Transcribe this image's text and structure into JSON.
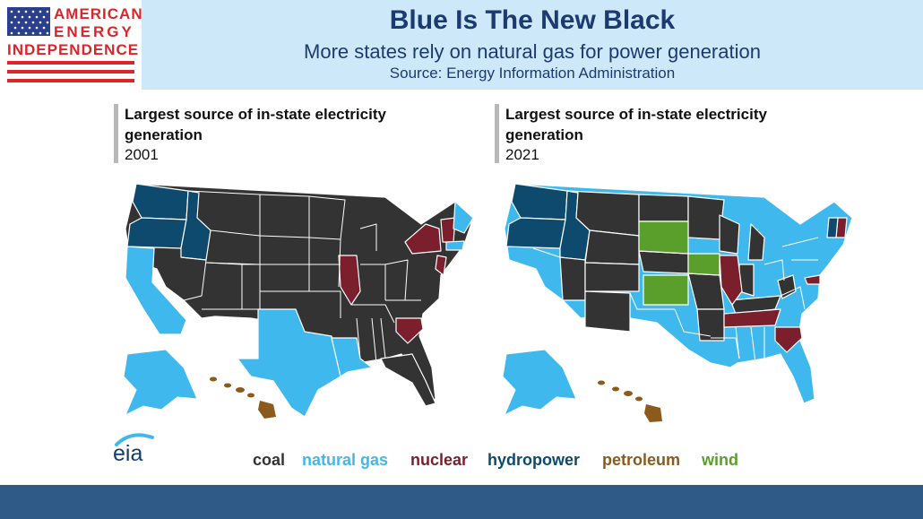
{
  "logo": {
    "line1": "AMERICAN",
    "line2": "ENERGY",
    "line3": "INDEPENDENCE"
  },
  "header": {
    "title": "Blue Is The New Black",
    "subtitle": "More states rely on natural gas for power generation",
    "source": "Source: Energy Information Administration"
  },
  "panels": [
    {
      "title_line1": "Largest source of in-state electricity",
      "title_line2": "generation",
      "year": "2001"
    },
    {
      "title_line1": "Largest source of in-state electricity",
      "title_line2": "generation",
      "year": "2021"
    }
  ],
  "eia_label": "eia",
  "legend": [
    {
      "label": "coal",
      "color": "#333333"
    },
    {
      "label": "natural gas",
      "color": "#3fb8ee"
    },
    {
      "label": "nuclear",
      "color": "#7a1f2b"
    },
    {
      "label": "hydropower",
      "color": "#0d4a6e"
    },
    {
      "label": "petroleum",
      "color": "#8b5a1c"
    },
    {
      "label": "wind",
      "color": "#5a9e2c"
    }
  ]
}
